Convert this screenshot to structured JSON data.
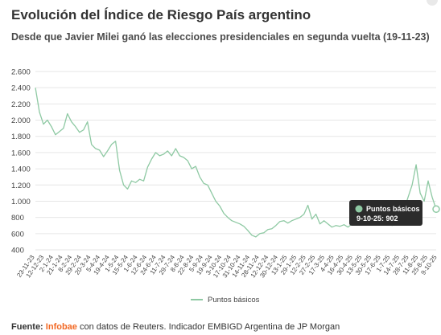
{
  "header": {
    "title": "Evolución del Índice de Riesgo País argentino",
    "subtitle": "Desde que Javier Milei ganó las elecciones presidenciales en segunda vuelta (19-11-23)"
  },
  "tooltip": {
    "series": "Puntos básicos",
    "detail": "9-10-25: 902"
  },
  "source": {
    "label": "Fuente:",
    "brand": "Infobae",
    "text": " con datos de Reuters. Indicador EMBIGD Argentina de JP Morgan"
  },
  "colors": {
    "line": "#8ec9a3",
    "tooltip_bg": "#2b2b2b",
    "brand": "#f26722"
  },
  "chart_data": {
    "type": "line",
    "title": "",
    "xlabel": "",
    "ylabel": "",
    "ylim": [
      400,
      2600
    ],
    "yticks": [
      400,
      600,
      800,
      1000,
      1200,
      1400,
      1600,
      1800,
      2000,
      2200,
      2400,
      2600
    ],
    "ytick_labels": [
      "400",
      "600",
      "800",
      "1.000",
      "1.200",
      "1.400",
      "1.600",
      "1.800",
      "2.000",
      "2.200",
      "2.400",
      "2.600"
    ],
    "xtick_labels": [
      "23-11-23",
      "12-12-23",
      "2-1-24",
      "21-1-24",
      "8-2-24",
      "29-2-24",
      "20-3-24",
      "5-4-24",
      "19-4-24",
      "1-5-24",
      "15-5-24",
      "1-6-24",
      "12-6-24",
      "24-6-24",
      "11-7-24",
      "29-7-24",
      "8-8-24",
      "22-8-24",
      "5-9-24",
      "19-9-24",
      "3-10-24",
      "17-10-24",
      "31-10-24",
      "14-11-24",
      "28-11-24",
      "12-12-24",
      "30-12-24",
      "13-1-25",
      "29-1-25",
      "12-2-25",
      "27-2-25",
      "17-3-25",
      "4-4-25",
      "16-4-25",
      "30-4-25",
      "13-5-25",
      "30-5-25",
      "17-6-25",
      "1-7-25",
      "14-7-25",
      "28-7-25",
      "11-8-25",
      "25-8-25",
      "9-10-25"
    ],
    "grid": true,
    "legend": "bottom-center",
    "series": [
      {
        "name": "Puntos básicos",
        "x": [
          0,
          1,
          2,
          3,
          4,
          5,
          6,
          7,
          8,
          9,
          10,
          11,
          12,
          13,
          14,
          15,
          16,
          17,
          18,
          19,
          20,
          21,
          22,
          23,
          24,
          25,
          26,
          27,
          28,
          29,
          30,
          31,
          32,
          33,
          34,
          35,
          36,
          37,
          38,
          39,
          40,
          41,
          42,
          43,
          44,
          45,
          46,
          47,
          48,
          49,
          50,
          51,
          52,
          53,
          54,
          55,
          56,
          57,
          58,
          59,
          60,
          61,
          62,
          63,
          64,
          65,
          66,
          67,
          68,
          69,
          70,
          71,
          72,
          73,
          74,
          75,
          76,
          77,
          78,
          79,
          80,
          81,
          82,
          83,
          84,
          85,
          86,
          87,
          88,
          89,
          90,
          91,
          92,
          93,
          94,
          95,
          96,
          97,
          98,
          99,
          100
        ],
        "y": [
          2400,
          2100,
          1950,
          2000,
          1920,
          1820,
          1860,
          1900,
          2080,
          1980,
          1920,
          1850,
          1880,
          1980,
          1700,
          1650,
          1630,
          1550,
          1620,
          1700,
          1740,
          1380,
          1200,
          1150,
          1250,
          1230,
          1270,
          1250,
          1420,
          1520,
          1600,
          1560,
          1580,
          1620,
          1560,
          1650,
          1560,
          1540,
          1500,
          1400,
          1430,
          1300,
          1220,
          1200,
          1100,
          1000,
          940,
          850,
          800,
          760,
          740,
          720,
          690,
          640,
          580,
          560,
          600,
          610,
          650,
          660,
          700,
          750,
          760,
          730,
          760,
          780,
          800,
          840,
          950,
          780,
          840,
          720,
          760,
          720,
          680,
          700,
          690,
          710,
          680,
          720,
          730,
          720,
          740,
          760,
          720,
          800,
          730,
          710,
          720,
          700,
          720,
          760,
          900,
          1050,
          1200,
          1450,
          1100,
          1000,
          1250,
          1050,
          902
        ]
      }
    ]
  },
  "legend": {
    "label": "Puntos básicos"
  }
}
